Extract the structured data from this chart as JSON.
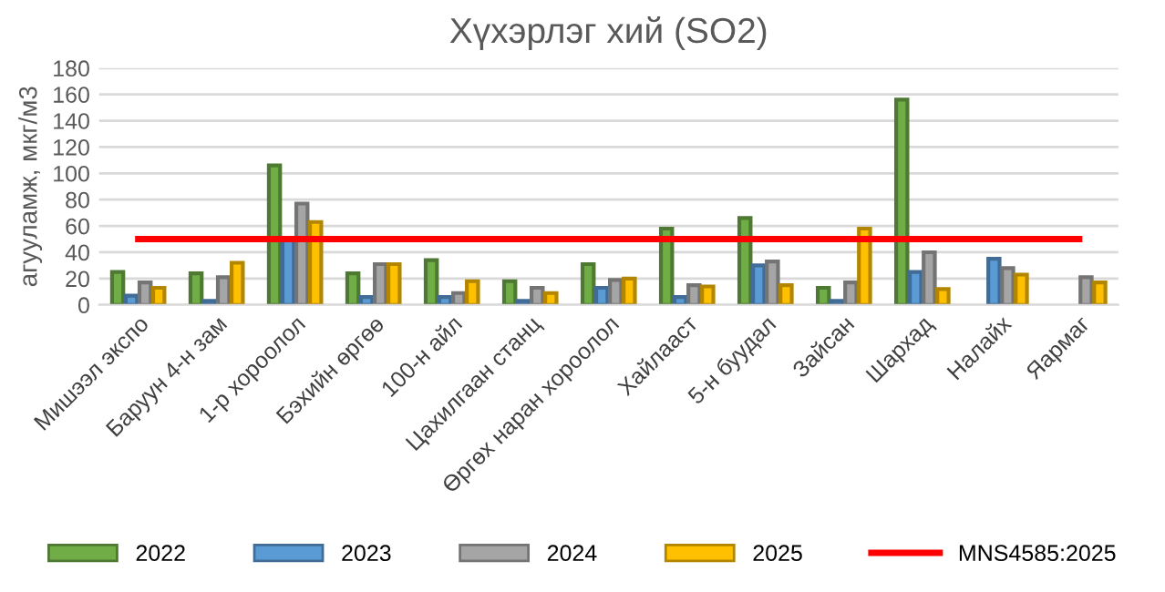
{
  "chart_data": {
    "type": "bar",
    "title": "Хүхэрлэг хий (SO2)",
    "ylabel": "агууламж, мкг/м3",
    "categories": [
      "Мишээл экспо",
      "Баруун 4-н зам",
      "1-р хороолол",
      "Бэхийн өргөө",
      "100-н айл",
      "Цахилгаан станц",
      "Өргөх наран хороолол",
      "Хайлааст",
      "5-н буудал",
      "Зайсан",
      "Шархад",
      "Налайх",
      "Яармаг"
    ],
    "series": [
      {
        "name": "2022",
        "color": "#70ad47",
        "values": [
          25,
          24,
          106,
          24,
          34,
          18,
          31,
          58,
          66,
          13,
          156,
          null,
          null
        ]
      },
      {
        "name": "2023",
        "color": "#5b9bd5",
        "values": [
          7,
          3,
          50,
          6,
          6,
          3,
          13,
          6,
          30,
          3,
          25,
          35,
          null
        ]
      },
      {
        "name": "2024",
        "color": "#a5a5a5",
        "values": [
          17,
          21,
          77,
          31,
          9,
          13,
          19,
          15,
          33,
          17,
          40,
          28,
          21
        ]
      },
      {
        "name": "2025",
        "color": "#ffc000",
        "values": [
          13,
          32,
          63,
          31,
          18,
          9,
          20,
          14,
          15,
          58,
          12,
          23,
          17
        ]
      },
      {
        "name": "MNS4585:2025",
        "type": "line",
        "color": "#ff0000",
        "values": [
          50,
          50,
          50,
          50,
          50,
          50,
          50,
          50,
          50,
          50,
          50,
          50,
          50
        ]
      }
    ],
    "ylim": [
      0,
      180
    ],
    "yticks": [
      0,
      20,
      40,
      60,
      80,
      100,
      120,
      140,
      160,
      180
    ],
    "grid": "y",
    "legend": "bottom"
  }
}
